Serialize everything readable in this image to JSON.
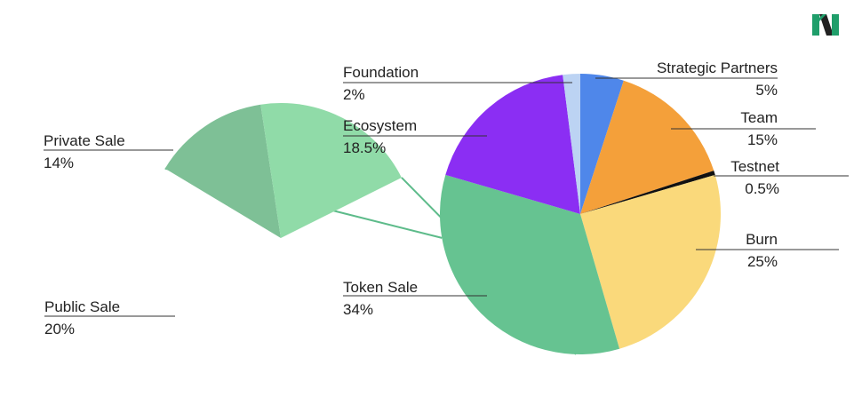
{
  "chart_data": {
    "type": "pie",
    "title": "",
    "slices": [
      {
        "label": "Strategic Partners",
        "value": 5,
        "value_label": "5%",
        "color": "#4f87ea"
      },
      {
        "label": "Team",
        "value": 15,
        "value_label": "15%",
        "color": "#f4a03a"
      },
      {
        "label": "Testnet",
        "value": 0.5,
        "value_label": "0.5%",
        "color": "#111111"
      },
      {
        "label": "Burn",
        "value": 25,
        "value_label": "25%",
        "color": "#fad97b"
      },
      {
        "label": "Token Sale",
        "value": 34,
        "value_label": "34%",
        "color": "#66c391"
      },
      {
        "label": "Ecosystem",
        "value": 18.5,
        "value_label": "18.5%",
        "color": "#8b2ef3"
      },
      {
        "label": "Foundation",
        "value": 2,
        "value_label": "2%",
        "color": "#bcd3f3"
      }
    ],
    "breakdown": {
      "of": "Token Sale",
      "slices": [
        {
          "label": "Private Sale",
          "value": 14,
          "value_label": "14%",
          "color": "#7ec096"
        },
        {
          "label": "Public Sale",
          "value": 20,
          "value_label": "20%",
          "color": "#90dba8"
        }
      ]
    },
    "connector_color": "#5dbb8a"
  },
  "logo": {
    "name": "brand-logo-icon",
    "colors": [
      "#1f9e6a",
      "#222222"
    ]
  }
}
